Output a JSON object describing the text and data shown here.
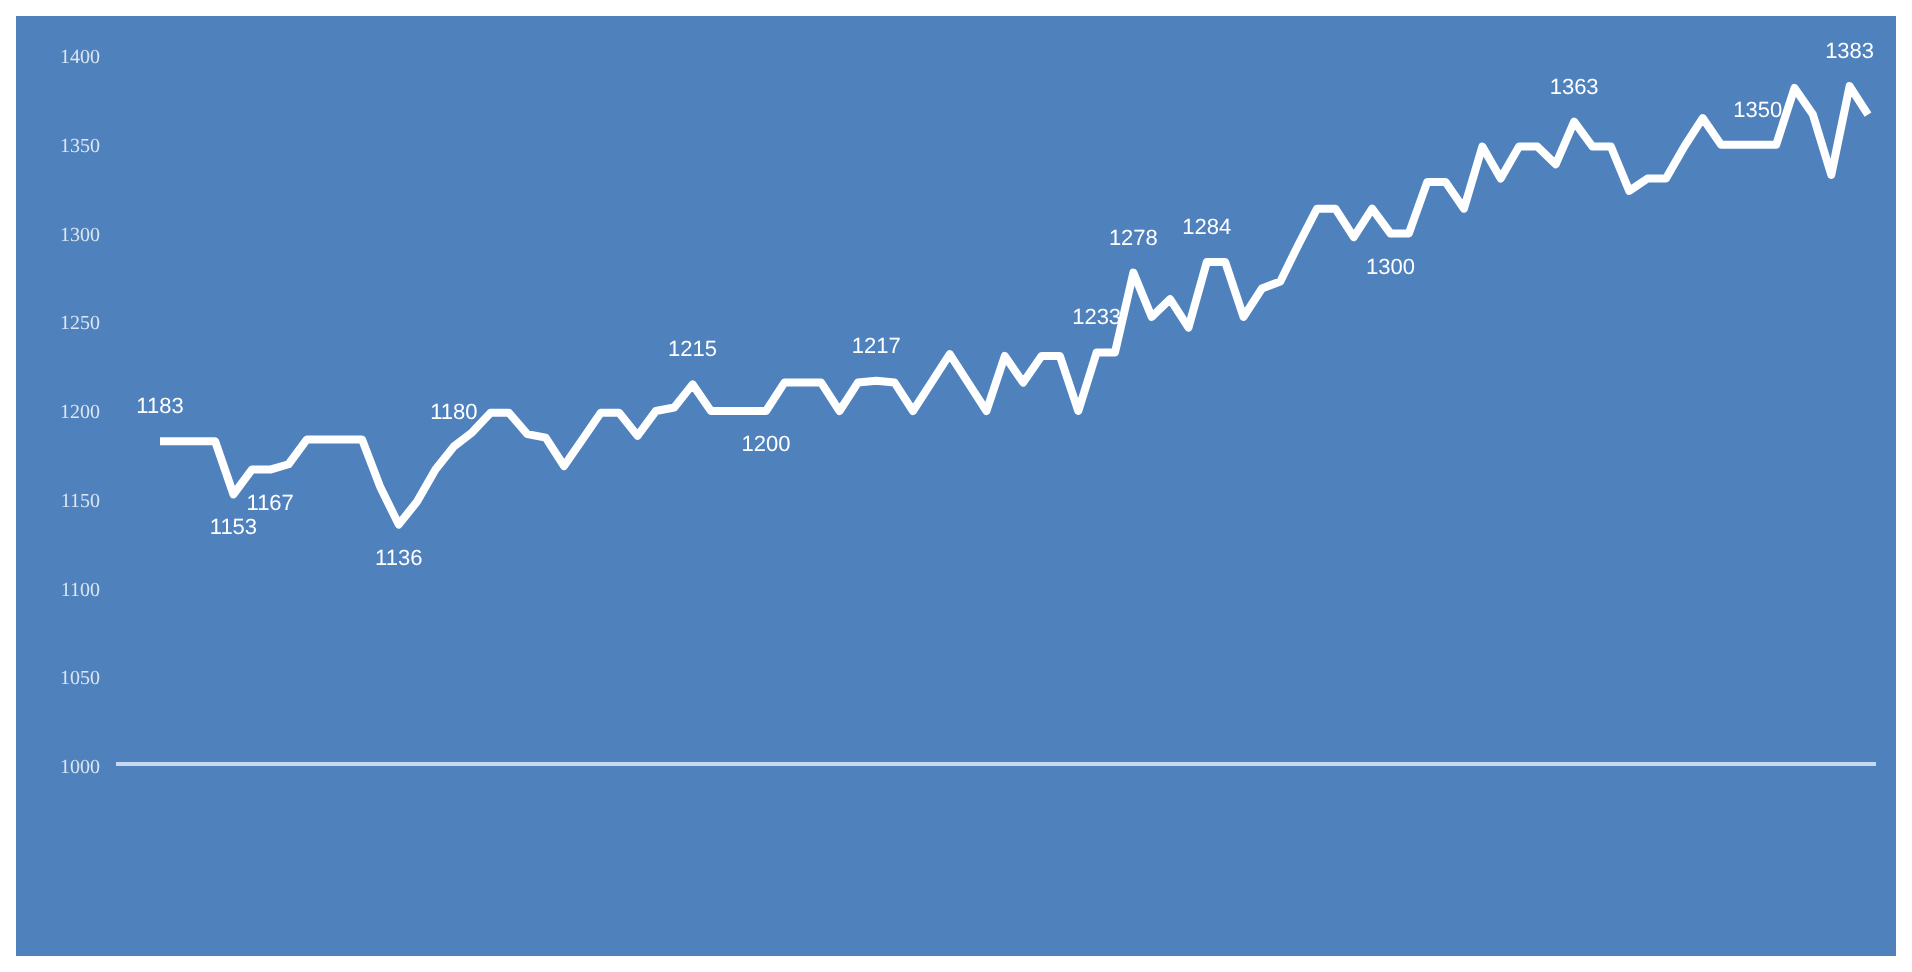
{
  "chart_data": {
    "type": "line",
    "categories": [
      null,
      null,
      null,
      null,
      null,
      null,
      null,
      null,
      null,
      null,
      null,
      null,
      null,
      null,
      null,
      null,
      null,
      null,
      null,
      null,
      null,
      null,
      null,
      null,
      null,
      null,
      null,
      null,
      null,
      null,
      null,
      null,
      null,
      null,
      null,
      null,
      null,
      null,
      null,
      null,
      null,
      null,
      null,
      null,
      null,
      null,
      null,
      null,
      null,
      null,
      null,
      null,
      null,
      null,
      null,
      null,
      null,
      null,
      null,
      null,
      null,
      null,
      null,
      null,
      null,
      null,
      null,
      null,
      null,
      null,
      null,
      null,
      null,
      null,
      null,
      null,
      null,
      null,
      null,
      null,
      null,
      null,
      null,
      null,
      null,
      null,
      null,
      null,
      null,
      null,
      null,
      null,
      null,
      null
    ],
    "series": [
      {
        "color": "#ffffff",
        "values": [
          1183,
          1183,
          1183,
          1183,
          1153,
          1167,
          1167,
          1170,
          1184,
          1184,
          1184,
          1184,
          1157,
          1136,
          1149,
          1167,
          1180,
          1188,
          1199,
          1199,
          1187,
          1185,
          1169,
          1184,
          1199,
          1199,
          1186,
          1200,
          1202,
          1215,
          1200,
          1200,
          1200,
          1200,
          1216,
          1216,
          1216,
          1200,
          1216,
          1217,
          1216,
          1200,
          1216,
          1232,
          1216,
          1200,
          1231,
          1216,
          1231,
          1231,
          1200,
          1233,
          1233,
          1278,
          1253,
          1263,
          1247,
          1284,
          1284,
          1253,
          1269,
          1273,
          1294,
          1314,
          1314,
          1298,
          1314,
          1300,
          1300,
          1329,
          1329,
          1314,
          1349,
          1331,
          1349,
          1349,
          1339,
          1363,
          1349,
          1349,
          1324,
          1331,
          1331,
          1349,
          1365,
          1350,
          1350,
          1350,
          1350,
          1382,
          1367,
          1333,
          1383,
          1367
        ],
        "value_labels": [
          "1183",
          null,
          null,
          null,
          "1153",
          null,
          "1167",
          null,
          null,
          null,
          null,
          null,
          null,
          "1136",
          null,
          null,
          "1180",
          null,
          null,
          null,
          null,
          null,
          null,
          null,
          null,
          null,
          null,
          null,
          null,
          "1215",
          null,
          null,
          null,
          "1200",
          null,
          null,
          null,
          null,
          null,
          "1217",
          null,
          null,
          null,
          null,
          null,
          null,
          null,
          null,
          null,
          null,
          null,
          "1233",
          null,
          "1278",
          null,
          null,
          null,
          "1284",
          null,
          null,
          null,
          null,
          null,
          null,
          null,
          null,
          null,
          "1300",
          null,
          null,
          null,
          null,
          null,
          null,
          null,
          null,
          null,
          "1363",
          null,
          null,
          null,
          null,
          null,
          null,
          null,
          null,
          null,
          "1350",
          null,
          null,
          null,
          null,
          "1383",
          null
        ]
      }
    ],
    "ylim": [
      1000,
      1400
    ],
    "yticks": [
      1000,
      1050,
      1100,
      1150,
      1200,
      1250,
      1300,
      1350,
      1400
    ],
    "grid": false,
    "legend": false,
    "marker": "none",
    "line_style": "solid"
  }
}
